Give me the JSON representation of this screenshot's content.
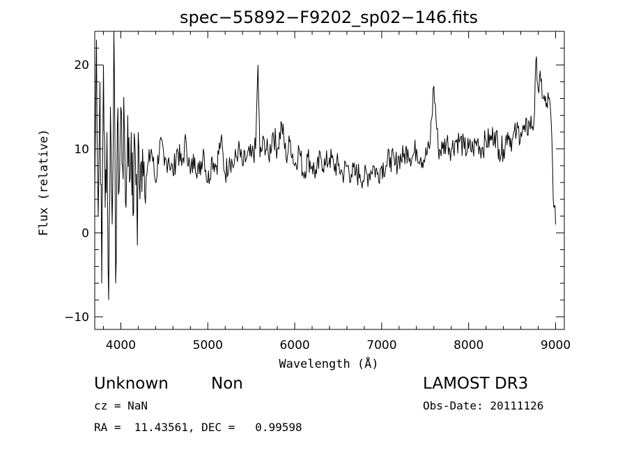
{
  "chart_data": {
    "type": "line",
    "title": "spec−55892−F9202_sp02−146.fits",
    "xlabel": "Wavelength (Å)",
    "ylabel": "Flux (relative)",
    "xlim": [
      3700,
      9100
    ],
    "ylim": [
      -11.5,
      24
    ],
    "xticks": [
      4000,
      5000,
      6000,
      7000,
      8000,
      9000
    ],
    "xtick_labels": [
      "4000",
      "5000",
      "6000",
      "7000",
      "8000",
      "9000"
    ],
    "yticks": [
      -10,
      0,
      10,
      20
    ],
    "ytick_labels": [
      "−10",
      "0",
      "10",
      "20"
    ],
    "grid": false,
    "legend": "none",
    "series": [
      {
        "name": "spectrum",
        "x": [
          3700,
          3720,
          3740,
          3760,
          3780,
          3800,
          3820,
          3840,
          3860,
          3880,
          3900,
          3920,
          3940,
          3960,
          3980,
          4000,
          4020,
          4040,
          4060,
          4080,
          4100,
          4120,
          4140,
          4160,
          4180,
          4190,
          4200,
          4220,
          4250,
          4300,
          4350,
          4400,
          4450,
          4500,
          4550,
          4600,
          4650,
          4700,
          4750,
          4800,
          4850,
          4900,
          4950,
          5000,
          5050,
          5100,
          5150,
          5200,
          5250,
          5300,
          5350,
          5400,
          5450,
          5500,
          5550,
          5577,
          5600,
          5650,
          5700,
          5750,
          5800,
          5850,
          5900,
          5950,
          6000,
          6050,
          6100,
          6150,
          6200,
          6250,
          6300,
          6350,
          6400,
          6450,
          6500,
          6550,
          6600,
          6650,
          6700,
          6750,
          6800,
          6850,
          6900,
          6950,
          7000,
          7050,
          7100,
          7150,
          7200,
          7250,
          7300,
          7350,
          7400,
          7450,
          7500,
          7550,
          7600,
          7650,
          7700,
          7750,
          7800,
          7850,
          7900,
          7950,
          8000,
          8050,
          8100,
          8150,
          8200,
          8250,
          8300,
          8350,
          8400,
          8450,
          8500,
          8550,
          8600,
          8650,
          8700,
          8750,
          8780,
          8800,
          8830,
          8860,
          8890,
          8920,
          8950,
          8980,
          9000
        ],
        "y": [
          5,
          23,
          2,
          18,
          -6,
          20,
          3,
          12,
          -8,
          15,
          1,
          24,
          -6,
          13,
          5,
          15,
          8,
          13,
          3,
          14,
          6,
          12,
          2,
          11,
          7,
          -1.5,
          12,
          4,
          10,
          7,
          10,
          6,
          11,
          8,
          9,
          7,
          10,
          8,
          11,
          7,
          9,
          7,
          10,
          6,
          9,
          8,
          11,
          7,
          9,
          8,
          10,
          8,
          9,
          9,
          10,
          20,
          9,
          11,
          9,
          12,
          10,
          13,
          9,
          11,
          8,
          10,
          7,
          9,
          8,
          7,
          9,
          8,
          9,
          8,
          8,
          7,
          8,
          7,
          7,
          7,
          6.5,
          7,
          8,
          7,
          8,
          8,
          9,
          8,
          9,
          9,
          10,
          9,
          10,
          9,
          9,
          10,
          17.5,
          10,
          10,
          11,
          10,
          11,
          11,
          10,
          10,
          10,
          11,
          10,
          11,
          11,
          12,
          10,
          10,
          12,
          11,
          12,
          12,
          12,
          13,
          13,
          21,
          17,
          18,
          16,
          15,
          16,
          13,
          3,
          1
        ]
      }
    ],
    "annotations": {
      "object_name": "Unknown",
      "object_class": "Non",
      "survey": "LAMOST DR3",
      "cz": "cz = NaN",
      "obs_date": "Obs-Date: 20111126",
      "coords": "RA =  11.43561, DEC =   0.99598"
    }
  }
}
